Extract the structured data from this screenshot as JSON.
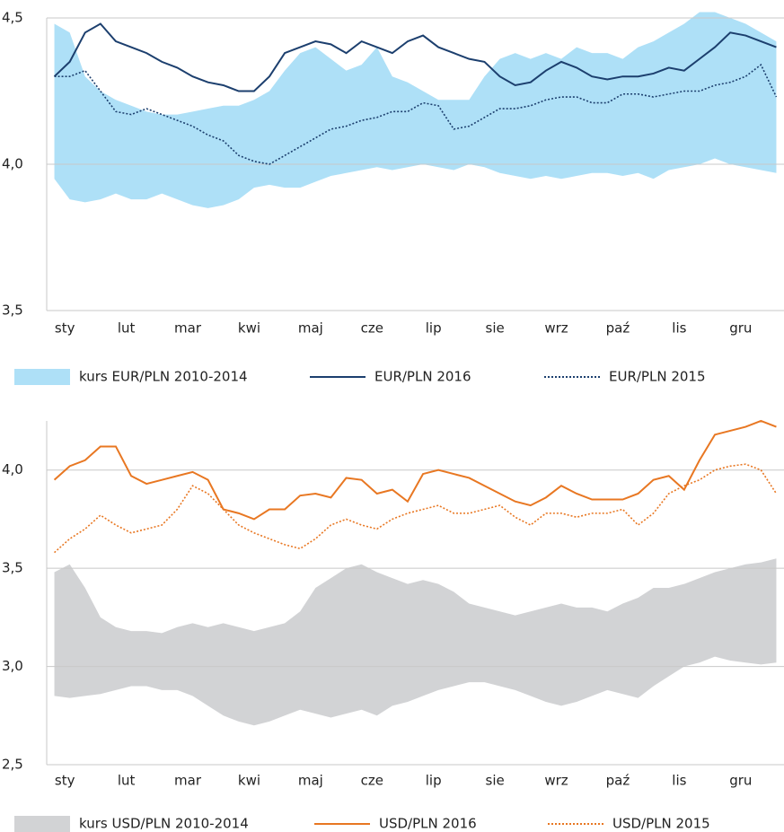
{
  "chart_data": [
    {
      "type": "line",
      "x": [
        0.125,
        0.375,
        0.625,
        0.875,
        1.125,
        1.375,
        1.625,
        1.875,
        2.125,
        2.375,
        2.625,
        2.875,
        3.125,
        3.375,
        3.625,
        3.875,
        4.125,
        4.375,
        4.625,
        4.875,
        5.125,
        5.375,
        5.625,
        5.875,
        6.125,
        6.375,
        6.625,
        6.875,
        7.125,
        7.375,
        7.625,
        7.875,
        8.125,
        8.375,
        8.625,
        8.875,
        9.125,
        9.375,
        9.625,
        9.875,
        10.125,
        10.375,
        10.625,
        10.875,
        11.125,
        11.375,
        11.625,
        11.875
      ],
      "xlim": [
        0,
        12
      ],
      "xticks": [
        {
          "value": 0.5,
          "label": "sty"
        },
        {
          "value": 1.5,
          "label": "lut"
        },
        {
          "value": 2.5,
          "label": "mar"
        },
        {
          "value": 3.5,
          "label": "kwi"
        },
        {
          "value": 4.5,
          "label": "maj"
        },
        {
          "value": 5.5,
          "label": "cze"
        },
        {
          "value": 6.5,
          "label": "lip"
        },
        {
          "value": 7.5,
          "label": "sie"
        },
        {
          "value": 8.5,
          "label": "wrz"
        },
        {
          "value": 9.5,
          "label": "paź"
        },
        {
          "value": 10.5,
          "label": "lis"
        },
        {
          "value": 11.5,
          "label": "gru"
        }
      ],
      "ylim": [
        3.5,
        4.5
      ],
      "yticks": [
        {
          "value": 3.5,
          "label": "3,5"
        },
        {
          "value": 4.0,
          "label": "4,0"
        },
        {
          "value": 4.5,
          "label": "4,5"
        }
      ],
      "grid": true,
      "series": [
        {
          "name": "kurs EUR/PLN 2010-2014",
          "color": "#aee0f7",
          "style": "band",
          "upper": [
            4.48,
            4.45,
            4.3,
            4.25,
            4.22,
            4.2,
            4.18,
            4.17,
            4.17,
            4.18,
            4.19,
            4.2,
            4.2,
            4.22,
            4.25,
            4.32,
            4.38,
            4.4,
            4.36,
            4.32,
            4.34,
            4.4,
            4.3,
            4.28,
            4.25,
            4.22,
            4.22,
            4.22,
            4.3,
            4.36,
            4.38,
            4.36,
            4.38,
            4.36,
            4.4,
            4.38,
            4.38,
            4.36,
            4.4,
            4.42,
            4.45,
            4.48,
            4.52,
            4.52,
            4.5,
            4.48,
            4.45,
            4.42
          ],
          "lower": [
            3.95,
            3.88,
            3.87,
            3.88,
            3.9,
            3.88,
            3.88,
            3.9,
            3.88,
            3.86,
            3.85,
            3.86,
            3.88,
            3.92,
            3.93,
            3.92,
            3.92,
            3.94,
            3.96,
            3.97,
            3.98,
            3.99,
            3.98,
            3.99,
            4.0,
            3.99,
            3.98,
            4.0,
            3.99,
            3.97,
            3.96,
            3.95,
            3.96,
            3.95,
            3.96,
            3.97,
            3.97,
            3.96,
            3.97,
            3.95,
            3.98,
            3.99,
            4.0,
            4.02,
            4.0,
            3.99,
            3.98,
            3.97
          ]
        },
        {
          "name": "EUR/PLN 2016",
          "color": "#1c3f6e",
          "style": "solid",
          "values": [
            4.3,
            4.35,
            4.45,
            4.48,
            4.42,
            4.4,
            4.38,
            4.35,
            4.33,
            4.3,
            4.28,
            4.27,
            4.25,
            4.25,
            4.3,
            4.38,
            4.4,
            4.42,
            4.41,
            4.38,
            4.42,
            4.4,
            4.38,
            4.42,
            4.44,
            4.4,
            4.38,
            4.36,
            4.35,
            4.3,
            4.27,
            4.28,
            4.32,
            4.35,
            4.33,
            4.3,
            4.29,
            4.3,
            4.3,
            4.31,
            4.33,
            4.32,
            4.36,
            4.4,
            4.45,
            4.44,
            4.42,
            4.4
          ]
        },
        {
          "name": "EUR/PLN 2015",
          "color": "#1c3f6e",
          "style": "dotted",
          "values": [
            4.3,
            4.3,
            4.32,
            4.25,
            4.18,
            4.17,
            4.19,
            4.17,
            4.15,
            4.13,
            4.1,
            4.08,
            4.03,
            4.01,
            4.0,
            4.03,
            4.06,
            4.09,
            4.12,
            4.13,
            4.15,
            4.16,
            4.18,
            4.18,
            4.21,
            4.2,
            4.12,
            4.13,
            4.16,
            4.19,
            4.19,
            4.2,
            4.22,
            4.23,
            4.23,
            4.21,
            4.21,
            4.24,
            4.24,
            4.23,
            4.24,
            4.25,
            4.25,
            4.27,
            4.28,
            4.3,
            4.34,
            4.23
          ]
        }
      ]
    },
    {
      "type": "line",
      "x": [
        0.125,
        0.375,
        0.625,
        0.875,
        1.125,
        1.375,
        1.625,
        1.875,
        2.125,
        2.375,
        2.625,
        2.875,
        3.125,
        3.375,
        3.625,
        3.875,
        4.125,
        4.375,
        4.625,
        4.875,
        5.125,
        5.375,
        5.625,
        5.875,
        6.125,
        6.375,
        6.625,
        6.875,
        7.125,
        7.375,
        7.625,
        7.875,
        8.125,
        8.375,
        8.625,
        8.875,
        9.125,
        9.375,
        9.625,
        9.875,
        10.125,
        10.375,
        10.625,
        10.875,
        11.125,
        11.375,
        11.625,
        11.875
      ],
      "xlim": [
        0,
        12
      ],
      "xticks": [
        {
          "value": 0.5,
          "label": "sty"
        },
        {
          "value": 1.5,
          "label": "lut"
        },
        {
          "value": 2.5,
          "label": "mar"
        },
        {
          "value": 3.5,
          "label": "kwi"
        },
        {
          "value": 4.5,
          "label": "maj"
        },
        {
          "value": 5.5,
          "label": "cze"
        },
        {
          "value": 6.5,
          "label": "lip"
        },
        {
          "value": 7.5,
          "label": "sie"
        },
        {
          "value": 8.5,
          "label": "wrz"
        },
        {
          "value": 9.5,
          "label": "paź"
        },
        {
          "value": 10.5,
          "label": "lis"
        },
        {
          "value": 11.5,
          "label": "gru"
        }
      ],
      "ylim": [
        2.5,
        4.25
      ],
      "yticks": [
        {
          "value": 2.5,
          "label": "2,5"
        },
        {
          "value": 3.0,
          "label": "3,0"
        },
        {
          "value": 3.5,
          "label": "3,5"
        },
        {
          "value": 4.0,
          "label": "4,0"
        }
      ],
      "grid": true,
      "series": [
        {
          "name": "kurs USD/PLN 2010-2014",
          "color": "#d2d3d5",
          "style": "band",
          "upper": [
            3.48,
            3.52,
            3.4,
            3.25,
            3.2,
            3.18,
            3.18,
            3.17,
            3.2,
            3.22,
            3.2,
            3.22,
            3.2,
            3.18,
            3.2,
            3.22,
            3.28,
            3.4,
            3.45,
            3.5,
            3.52,
            3.48,
            3.45,
            3.42,
            3.44,
            3.42,
            3.38,
            3.32,
            3.3,
            3.28,
            3.26,
            3.28,
            3.3,
            3.32,
            3.3,
            3.3,
            3.28,
            3.32,
            3.35,
            3.4,
            3.4,
            3.42,
            3.45,
            3.48,
            3.5,
            3.52,
            3.53,
            3.55
          ],
          "lower": [
            2.85,
            2.84,
            2.85,
            2.86,
            2.88,
            2.9,
            2.9,
            2.88,
            2.88,
            2.85,
            2.8,
            2.75,
            2.72,
            2.7,
            2.72,
            2.75,
            2.78,
            2.76,
            2.74,
            2.76,
            2.78,
            2.75,
            2.8,
            2.82,
            2.85,
            2.88,
            2.9,
            2.92,
            2.92,
            2.9,
            2.88,
            2.85,
            2.82,
            2.8,
            2.82,
            2.85,
            2.88,
            2.86,
            2.84,
            2.9,
            2.95,
            3.0,
            3.02,
            3.05,
            3.03,
            3.02,
            3.01,
            3.02
          ]
        },
        {
          "name": "USD/PLN 2016",
          "color": "#e87722",
          "style": "solid",
          "values": [
            3.95,
            4.02,
            4.05,
            4.12,
            4.12,
            3.97,
            3.93,
            3.95,
            3.97,
            3.99,
            3.95,
            3.8,
            3.78,
            3.75,
            3.8,
            3.8,
            3.87,
            3.88,
            3.86,
            3.96,
            3.95,
            3.88,
            3.9,
            3.84,
            3.98,
            4.0,
            3.98,
            3.96,
            3.92,
            3.88,
            3.84,
            3.82,
            3.86,
            3.92,
            3.88,
            3.85,
            3.85,
            3.85,
            3.88,
            3.95,
            3.97,
            3.9,
            4.05,
            4.18,
            4.2,
            4.22,
            4.25,
            4.22
          ]
        },
        {
          "name": "USD/PLN 2015",
          "color": "#e87722",
          "style": "dotted",
          "values": [
            3.58,
            3.65,
            3.7,
            3.77,
            3.72,
            3.68,
            3.7,
            3.72,
            3.8,
            3.92,
            3.88,
            3.8,
            3.72,
            3.68,
            3.65,
            3.62,
            3.6,
            3.65,
            3.72,
            3.75,
            3.72,
            3.7,
            3.75,
            3.78,
            3.8,
            3.82,
            3.78,
            3.78,
            3.8,
            3.82,
            3.76,
            3.72,
            3.78,
            3.78,
            3.76,
            3.78,
            3.78,
            3.8,
            3.72,
            3.78,
            3.88,
            3.92,
            3.95,
            4.0,
            4.02,
            4.03,
            4.0,
            3.88
          ]
        }
      ]
    }
  ]
}
